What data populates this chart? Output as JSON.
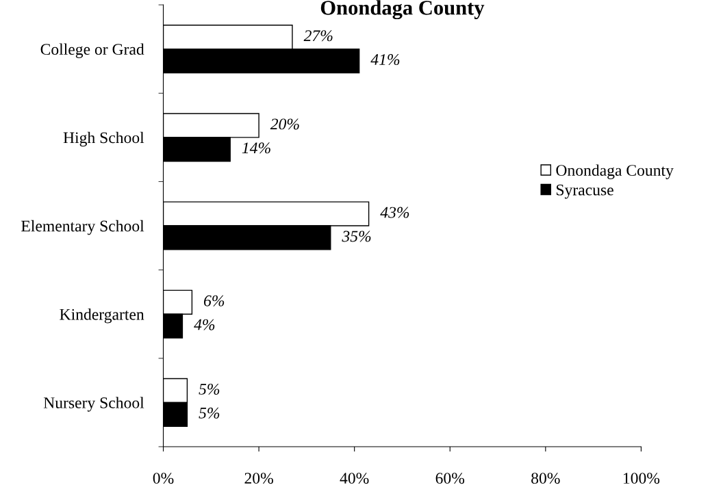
{
  "chart_data": {
    "type": "bar",
    "orientation": "horizontal",
    "title": "Onondaga County",
    "categories": [
      "College or Grad",
      "High School",
      "Elementary School",
      "Kindergarten",
      "Nursery School"
    ],
    "series": [
      {
        "name": "Onondaga County",
        "color": "#ffffff",
        "values": [
          27,
          20,
          43,
          6,
          5
        ],
        "value_labels": [
          "27%",
          "20%",
          "43%",
          "6%",
          "5%"
        ]
      },
      {
        "name": "Syracuse",
        "color": "#000000",
        "values": [
          41,
          14,
          35,
          4,
          5
        ],
        "value_labels": [
          "41%",
          "14%",
          "35%",
          "4%",
          "5%"
        ]
      }
    ],
    "xlim": [
      0,
      100
    ],
    "xticks": [
      {
        "value": 0,
        "label": "0%"
      },
      {
        "value": 20,
        "label": "20%"
      },
      {
        "value": 40,
        "label": "40%"
      },
      {
        "value": 60,
        "label": "60%"
      },
      {
        "value": 80,
        "label": "80%"
      },
      {
        "value": 100,
        "label": "100%"
      }
    ],
    "legend": "right",
    "grid": false
  }
}
